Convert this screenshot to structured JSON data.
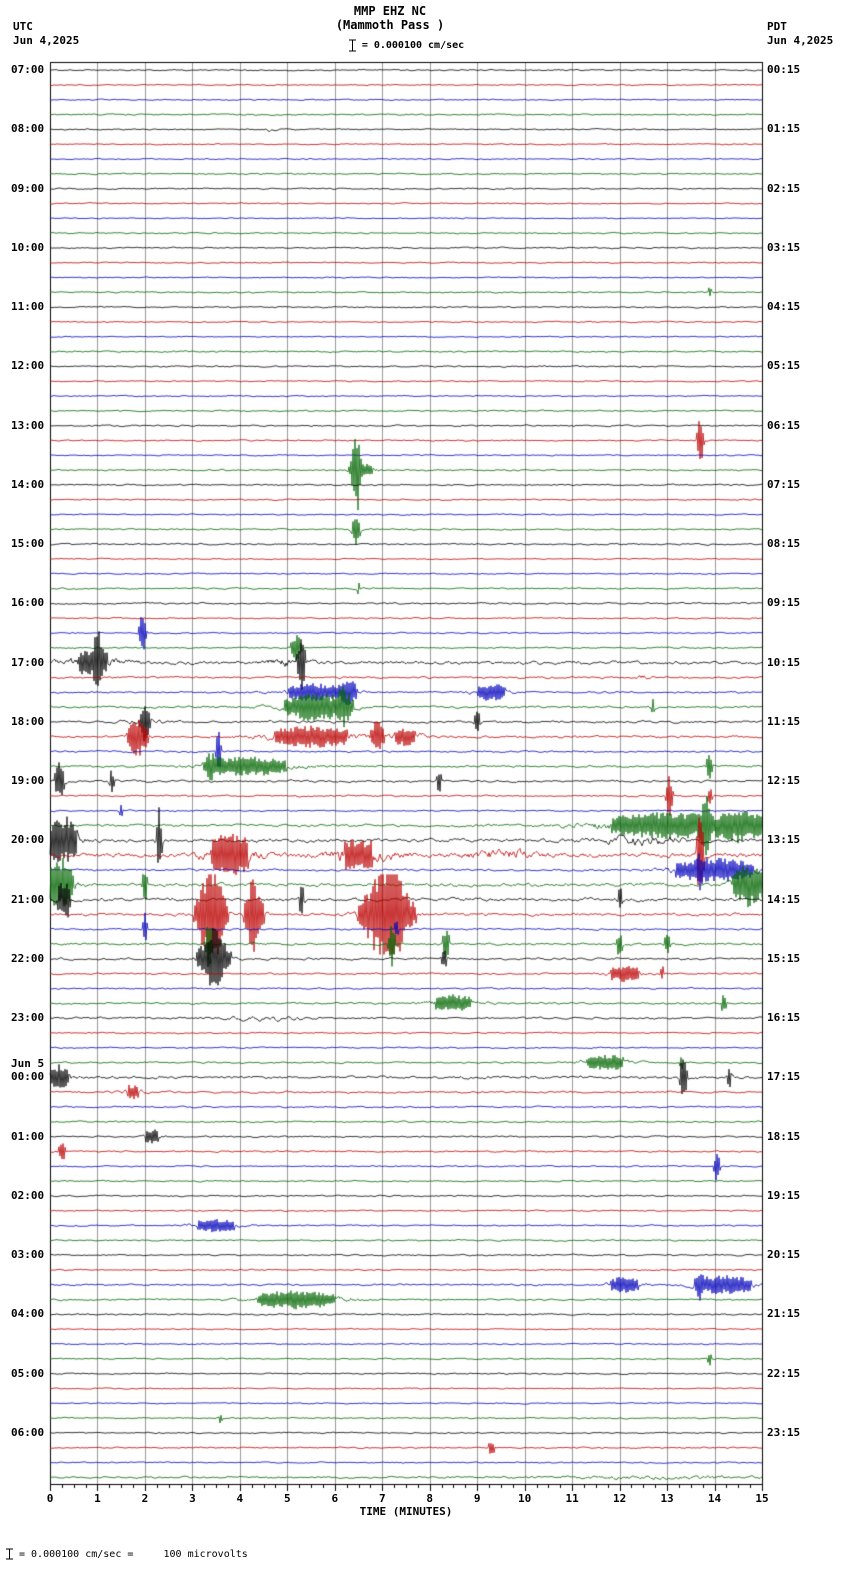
{
  "header": {
    "station": "MMP EHZ NC",
    "subtitle": "(Mammoth Pass )",
    "left_tz": "UTC",
    "left_date": "Jun 4,2025",
    "right_tz": "PDT",
    "right_date": "Jun 4,2025",
    "scale_text": "= 0.000100 cm/sec"
  },
  "footer": {
    "xlabel": "TIME (MINUTES)",
    "scale_text": "= 0.000100 cm/sec =     100 microvolts"
  },
  "chart_data": {
    "type": "line",
    "title": "MMP EHZ NC (Mammoth Pass )",
    "xlabel": "TIME (MINUTES)",
    "x_range": [
      0,
      15
    ],
    "x_ticks": [
      "0",
      "1",
      "2",
      "3",
      "4",
      "5",
      "6",
      "7",
      "8",
      "9",
      "10",
      "11",
      "12",
      "13",
      "14",
      "15"
    ],
    "minutes_per_row": 15,
    "rows_per_hour": 4,
    "grid": true,
    "colors": {
      "black": "#000000",
      "red": "#bb0000",
      "blue": "#0000bb",
      "green": "#006600"
    },
    "utc_hour_labels": [
      "07:00",
      "08:00",
      "09:00",
      "10:00",
      "11:00",
      "12:00",
      "13:00",
      "14:00",
      "15:00",
      "16:00",
      "17:00",
      "18:00",
      "19:00",
      "20:00",
      "21:00",
      "22:00",
      "23:00",
      "00:00",
      "01:00",
      "02:00",
      "03:00",
      "04:00",
      "05:00",
      "06:00"
    ],
    "pdt_hour_labels": [
      "00:15",
      "01:15",
      "02:15",
      "03:15",
      "04:15",
      "05:15",
      "06:15",
      "07:15",
      "08:15",
      "09:15",
      "10:15",
      "11:15",
      "12:15",
      "13:15",
      "14:15",
      "15:15",
      "16:15",
      "17:15",
      "18:15",
      "19:15",
      "20:15",
      "21:15",
      "22:15",
      "23:15"
    ],
    "date_break": {
      "hour_index": 17,
      "text": "Jun 5"
    },
    "rows": [
      {
        "color": "black",
        "amp": 0.9
      },
      {
        "color": "red",
        "amp": 0.8
      },
      {
        "color": "blue",
        "amp": 0.8
      },
      {
        "color": "green",
        "amp": 0.9
      },
      {
        "color": "black",
        "amp": 0.9,
        "events": [
          [
            4.7,
            0.15,
            2.5
          ]
        ]
      },
      {
        "color": "red",
        "amp": 0.8
      },
      {
        "color": "blue",
        "amp": 0.8
      },
      {
        "color": "green",
        "amp": 0.9
      },
      {
        "color": "black",
        "amp": 0.9
      },
      {
        "color": "red",
        "amp": 0.8
      },
      {
        "color": "blue",
        "amp": 0.7
      },
      {
        "color": "green",
        "amp": 0.9
      },
      {
        "color": "black",
        "amp": 0.9
      },
      {
        "color": "red",
        "amp": 0.8
      },
      {
        "color": "blue",
        "amp": 0.7
      },
      {
        "color": "green",
        "amp": 0.9,
        "events": [
          [
            13.9,
            0.05,
            3
          ]
        ]
      },
      {
        "color": "black",
        "amp": 0.9
      },
      {
        "color": "red",
        "amp": 0.8
      },
      {
        "color": "blue",
        "amp": 0.7
      },
      {
        "color": "green",
        "amp": 1.0
      },
      {
        "color": "black",
        "amp": 1.0
      },
      {
        "color": "red",
        "amp": 0.8
      },
      {
        "color": "blue",
        "amp": 0.8
      },
      {
        "color": "green",
        "amp": 0.9
      },
      {
        "color": "black",
        "amp": 1.0
      },
      {
        "color": "red",
        "amp": 0.9,
        "events": [
          [
            13.7,
            0.04,
            22
          ]
        ]
      },
      {
        "color": "blue",
        "amp": 0.8
      },
      {
        "color": "green",
        "amp": 1.0,
        "events": [
          [
            6.45,
            0.05,
            30
          ],
          [
            6.55,
            0.25,
            4
          ]
        ]
      },
      {
        "color": "black",
        "amp": 1.0
      },
      {
        "color": "red",
        "amp": 0.9
      },
      {
        "color": "blue",
        "amp": 0.8
      },
      {
        "color": "green",
        "amp": 1.0,
        "events": [
          [
            6.45,
            0.06,
            10
          ]
        ]
      },
      {
        "color": "black",
        "amp": 1.0
      },
      {
        "color": "red",
        "amp": 0.8
      },
      {
        "color": "blue",
        "amp": 0.8
      },
      {
        "color": "green",
        "amp": 1.0,
        "events": [
          [
            6.5,
            0.05,
            3
          ]
        ]
      },
      {
        "color": "black",
        "amp": 1.1
      },
      {
        "color": "red",
        "amp": 0.9
      },
      {
        "color": "blue",
        "amp": 0.9,
        "events": [
          [
            1.95,
            0.05,
            14
          ]
        ]
      },
      {
        "color": "green",
        "amp": 1.0,
        "events": [
          [
            5.2,
            0.08,
            9
          ]
        ]
      },
      {
        "color": "black",
        "amp": 2.2,
        "events": [
          [
            0.9,
            0.5,
            3
          ],
          [
            1.0,
            0.05,
            7
          ],
          [
            5.3,
            0.05,
            6
          ],
          [
            5.0,
            0.4,
            2
          ]
        ]
      },
      {
        "color": "red",
        "amp": 1.3,
        "events": [
          [
            12.5,
            0.1,
            2
          ]
        ]
      },
      {
        "color": "blue",
        "amp": 1.2,
        "events": [
          [
            5.6,
            0.6,
            4
          ],
          [
            6.3,
            0.1,
            5
          ],
          [
            9.3,
            0.3,
            4
          ]
        ]
      },
      {
        "color": "green",
        "amp": 1.4,
        "events": [
          [
            5.6,
            0.5,
            6
          ],
          [
            6.2,
            0.1,
            6
          ],
          [
            12.7,
            0.05,
            3
          ]
        ]
      },
      {
        "color": "black",
        "amp": 1.5,
        "events": [
          [
            2.0,
            0.05,
            7
          ],
          [
            2.0,
            0.3,
            2
          ],
          [
            9.0,
            0.05,
            4
          ]
        ]
      },
      {
        "color": "red",
        "amp": 1.5,
        "events": [
          [
            1.85,
            0.15,
            8
          ],
          [
            5.5,
            0.8,
            4
          ],
          [
            6.9,
            0.08,
            6
          ],
          [
            7.5,
            0.3,
            3
          ]
        ]
      },
      {
        "color": "blue",
        "amp": 1.2,
        "events": [
          [
            3.55,
            0.04,
            11
          ]
        ]
      },
      {
        "color": "green",
        "amp": 1.3,
        "events": [
          [
            3.4,
            0.1,
            4
          ],
          [
            4.2,
            0.8,
            4
          ],
          [
            13.9,
            0.05,
            6
          ]
        ]
      },
      {
        "color": "black",
        "amp": 1.5,
        "events": [
          [
            0.2,
            0.07,
            9
          ],
          [
            1.3,
            0.05,
            4
          ],
          [
            8.2,
            0.05,
            4
          ]
        ]
      },
      {
        "color": "red",
        "amp": 1.2,
        "events": [
          [
            13.05,
            0.05,
            11
          ],
          [
            13.9,
            0.05,
            4
          ]
        ]
      },
      {
        "color": "blue",
        "amp": 1.0,
        "events": [
          [
            1.5,
            0.05,
            3
          ]
        ]
      },
      {
        "color": "green",
        "amp": 1.8,
        "events": [
          [
            13.0,
            1.2,
            4
          ],
          [
            13.8,
            0.06,
            9
          ],
          [
            14.6,
            0.3,
            4
          ]
        ]
      },
      {
        "color": "black",
        "amp": 2.5,
        "events": [
          [
            0.25,
            0.25,
            6
          ],
          [
            2.3,
            0.04,
            8
          ],
          [
            12.5,
            0.6,
            2
          ]
        ]
      },
      {
        "color": "red",
        "amp": 3.0,
        "events": [
          [
            3.8,
            0.4,
            4
          ],
          [
            6.5,
            0.5,
            3
          ],
          [
            9.5,
            0.5,
            2
          ],
          [
            13.7,
            0.05,
            9
          ]
        ]
      },
      {
        "color": "blue",
        "amp": 1.4,
        "events": [
          [
            13.7,
            0.05,
            5
          ],
          [
            14.0,
            0.7,
            5
          ]
        ]
      },
      {
        "color": "green",
        "amp": 2.2,
        "events": [
          [
            0.2,
            0.2,
            8
          ],
          [
            2.0,
            0.05,
            4
          ],
          [
            14.7,
            0.25,
            6
          ]
        ]
      },
      {
        "color": "black",
        "amp": 2.2,
        "events": [
          [
            0.3,
            0.1,
            6
          ],
          [
            5.3,
            0.05,
            4
          ],
          [
            12.0,
            0.05,
            3
          ]
        ]
      },
      {
        "color": "red",
        "amp": 1.8,
        "events": [
          [
            3.4,
            0.18,
            20
          ],
          [
            4.3,
            0.12,
            13
          ],
          [
            7.1,
            0.3,
            20
          ]
        ]
      },
      {
        "color": "blue",
        "amp": 1.1,
        "events": [
          [
            2.0,
            0.03,
            10
          ],
          [
            7.3,
            0.05,
            4
          ]
        ]
      },
      {
        "color": "green",
        "amp": 1.4,
        "events": [
          [
            3.35,
            0.04,
            13
          ],
          [
            7.2,
            0.05,
            10
          ],
          [
            8.35,
            0.05,
            8
          ],
          [
            12.0,
            0.05,
            5
          ],
          [
            13.0,
            0.06,
            4
          ]
        ]
      },
      {
        "color": "black",
        "amp": 1.4,
        "events": [
          [
            3.45,
            0.2,
            14
          ],
          [
            8.3,
            0.05,
            4
          ]
        ]
      },
      {
        "color": "red",
        "amp": 1.2,
        "events": [
          [
            12.1,
            0.3,
            4
          ],
          [
            12.9,
            0.05,
            3
          ]
        ]
      },
      {
        "color": "blue",
        "amp": 1.0
      },
      {
        "color": "green",
        "amp": 1.2,
        "events": [
          [
            8.5,
            0.4,
            4
          ],
          [
            14.2,
            0.05,
            5
          ]
        ]
      },
      {
        "color": "black",
        "amp": 1.4,
        "events": [
          [
            4.5,
            0.5,
            2
          ]
        ]
      },
      {
        "color": "red",
        "amp": 0.9
      },
      {
        "color": "blue",
        "amp": 0.9
      },
      {
        "color": "green",
        "amp": 1.1,
        "events": [
          [
            11.7,
            0.4,
            4
          ],
          [
            13.3,
            0.05,
            3
          ]
        ]
      },
      {
        "color": "black",
        "amp": 1.8,
        "events": [
          [
            0.2,
            0.2,
            4
          ],
          [
            13.35,
            0.05,
            9
          ],
          [
            14.3,
            0.05,
            3
          ]
        ]
      },
      {
        "color": "red",
        "amp": 1.3,
        "events": [
          [
            1.75,
            0.2,
            3
          ]
        ]
      },
      {
        "color": "blue",
        "amp": 1.0,
        "events": [
          [
            10.3,
            0.05,
            2
          ]
        ]
      },
      {
        "color": "green",
        "amp": 1.0
      },
      {
        "color": "black",
        "amp": 1.1,
        "events": [
          [
            2.15,
            0.15,
            4
          ]
        ]
      },
      {
        "color": "red",
        "amp": 1.0,
        "events": [
          [
            0.25,
            0.05,
            7
          ]
        ]
      },
      {
        "color": "blue",
        "amp": 0.9,
        "events": [
          [
            14.05,
            0.04,
            11
          ]
        ]
      },
      {
        "color": "green",
        "amp": 0.9
      },
      {
        "color": "black",
        "amp": 1.0
      },
      {
        "color": "red",
        "amp": 0.9
      },
      {
        "color": "blue",
        "amp": 0.9,
        "events": [
          [
            3.5,
            0.4,
            4
          ]
        ]
      },
      {
        "color": "green",
        "amp": 0.9
      },
      {
        "color": "black",
        "amp": 1.0
      },
      {
        "color": "red",
        "amp": 0.9
      },
      {
        "color": "blue",
        "amp": 1.1,
        "events": [
          [
            12.1,
            0.3,
            4
          ],
          [
            13.7,
            0.05,
            7
          ],
          [
            14.2,
            0.5,
            5
          ]
        ]
      },
      {
        "color": "green",
        "amp": 1.1,
        "events": [
          [
            5.2,
            0.7,
            5
          ]
        ]
      },
      {
        "color": "black",
        "amp": 1.0
      },
      {
        "color": "red",
        "amp": 0.8
      },
      {
        "color": "blue",
        "amp": 0.8
      },
      {
        "color": "green",
        "amp": 0.9,
        "events": [
          [
            13.9,
            0.04,
            4
          ]
        ]
      },
      {
        "color": "black",
        "amp": 0.9
      },
      {
        "color": "red",
        "amp": 0.8
      },
      {
        "color": "blue",
        "amp": 0.8
      },
      {
        "color": "green",
        "amp": 0.9,
        "events": [
          [
            3.6,
            0.05,
            3
          ]
        ]
      },
      {
        "color": "black",
        "amp": 0.9
      },
      {
        "color": "red",
        "amp": 0.9,
        "events": [
          [
            9.3,
            0.06,
            4
          ]
        ]
      },
      {
        "color": "blue",
        "amp": 0.8
      },
      {
        "color": "green",
        "amp": 1.2,
        "events": [
          [
            13.0,
            1.5,
            1.5
          ]
        ]
      }
    ]
  }
}
